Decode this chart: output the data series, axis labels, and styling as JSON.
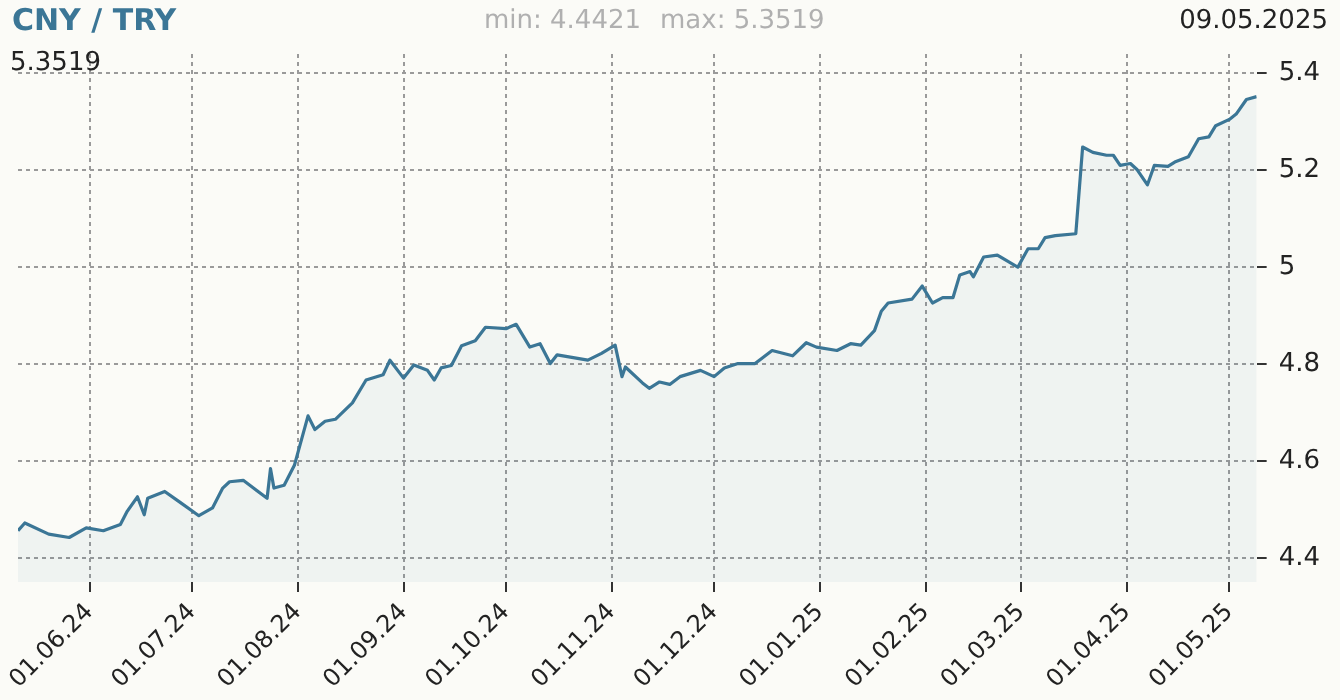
{
  "chart_data": {
    "type": "area",
    "title": "CNY / TRY",
    "annotations": [
      "min: 4.4421",
      "max: 5.3519",
      "09.05.2025",
      "5.3519"
    ],
    "x": [
      "2024-05-11",
      "2024-05-13",
      "2024-05-20",
      "2024-05-26",
      "2024-05-31",
      "2024-06-05",
      "2024-06-10",
      "2024-06-12",
      "2024-06-15",
      "2024-06-17",
      "2024-06-18",
      "2024-06-23",
      "2024-06-27",
      "2024-07-03",
      "2024-07-07",
      "2024-07-10",
      "2024-07-12",
      "2024-07-16",
      "2024-07-19",
      "2024-07-23",
      "2024-07-24",
      "2024-07-25",
      "2024-07-28",
      "2024-07-31",
      "2024-08-04",
      "2024-08-06",
      "2024-08-09",
      "2024-08-12",
      "2024-08-17",
      "2024-08-21",
      "2024-08-26",
      "2024-08-28",
      "2024-09-01",
      "2024-09-04",
      "2024-09-08",
      "2024-09-10",
      "2024-09-12",
      "2024-09-15",
      "2024-09-18",
      "2024-09-22",
      "2024-09-25",
      "2024-10-01",
      "2024-10-04",
      "2024-10-08",
      "2024-10-11",
      "2024-10-14",
      "2024-10-16",
      "2024-10-25",
      "2024-10-29",
      "2024-11-02",
      "2024-11-04",
      "2024-11-05",
      "2024-11-10",
      "2024-11-12",
      "2024-11-15",
      "2024-11-18",
      "2024-11-21",
      "2024-11-27",
      "2024-12-01",
      "2024-12-04",
      "2024-12-08",
      "2024-12-13",
      "2024-12-18",
      "2024-12-24",
      "2024-12-28",
      "2024-12-31",
      "2025-01-06",
      "2025-01-10",
      "2025-01-13",
      "2025-01-17",
      "2025-01-19",
      "2025-01-21",
      "2025-01-28",
      "2025-01-31",
      "2025-02-03",
      "2025-02-06",
      "2025-02-09",
      "2025-02-11",
      "2025-02-14",
      "2025-02-15",
      "2025-02-18",
      "2025-02-22",
      "2025-02-28",
      "2025-03-03",
      "2025-03-06",
      "2025-03-08",
      "2025-03-11",
      "2025-03-17",
      "2025-03-19",
      "2025-03-22",
      "2025-03-26",
      "2025-03-28",
      "2025-03-30",
      "2025-04-02",
      "2025-04-04",
      "2025-04-07",
      "2025-04-09",
      "2025-04-13",
      "2025-04-15",
      "2025-04-19",
      "2025-04-22",
      "2025-04-25",
      "2025-04-27",
      "2025-05-01",
      "2025-05-03",
      "2025-05-06",
      "2025-05-09"
    ],
    "series": [
      {
        "color": "#3b7696",
        "values": [
          4.456,
          4.472,
          4.449,
          4.442,
          4.462,
          4.456,
          4.469,
          4.496,
          4.526,
          4.489,
          4.523,
          4.537,
          4.517,
          4.487,
          4.503,
          4.544,
          4.557,
          4.56,
          4.544,
          4.523,
          4.584,
          4.544,
          4.55,
          4.591,
          4.693,
          4.665,
          4.682,
          4.686,
          4.72,
          4.767,
          4.778,
          4.808,
          4.771,
          4.798,
          4.787,
          4.767,
          4.792,
          4.797,
          4.838,
          4.848,
          4.876,
          4.873,
          4.882,
          4.835,
          4.842,
          4.801,
          4.819,
          4.808,
          4.822,
          4.839,
          4.774,
          4.794,
          4.761,
          4.75,
          4.763,
          4.758,
          4.774,
          4.787,
          4.774,
          4.792,
          4.801,
          4.801,
          4.828,
          4.817,
          4.844,
          4.835,
          4.828,
          4.842,
          4.839,
          4.869,
          4.909,
          4.926,
          4.934,
          4.961,
          4.926,
          4.937,
          4.937,
          4.984,
          4.991,
          4.98,
          5.021,
          5.025,
          5.0,
          5.038,
          5.038,
          5.061,
          5.065,
          5.069,
          5.248,
          5.237,
          5.231,
          5.231,
          5.21,
          5.214,
          5.201,
          5.17,
          5.21,
          5.208,
          5.217,
          5.228,
          5.265,
          5.269,
          5.292,
          5.305,
          5.316,
          5.346,
          5.352
        ]
      }
    ],
    "xlim": [
      "2024-05-11",
      "2025-05-09"
    ],
    "xticks": [
      {
        "value": "2024-06-01",
        "label": "01.06.24"
      },
      {
        "value": "2024-07-01",
        "label": "01.07.24"
      },
      {
        "value": "2024-08-01",
        "label": "01.08.24"
      },
      {
        "value": "2024-09-01",
        "label": "01.09.24"
      },
      {
        "value": "2024-10-01",
        "label": "01.10.24"
      },
      {
        "value": "2024-11-01",
        "label": "01.11.24"
      },
      {
        "value": "2024-12-01",
        "label": "01.12.24"
      },
      {
        "value": "2025-01-01",
        "label": "01.01.25"
      },
      {
        "value": "2025-02-01",
        "label": "01.02.25"
      },
      {
        "value": "2025-03-01",
        "label": "01.03.25"
      },
      {
        "value": "2025-04-01",
        "label": "01.04.25"
      },
      {
        "value": "2025-05-01",
        "label": "01.05.25"
      }
    ],
    "ylim": [
      4.35,
      5.44
    ],
    "yticks": [
      4.4,
      4.6,
      4.8,
      5,
      5.2,
      5.4
    ],
    "grid": true,
    "legend": false,
    "marker": "none",
    "line_style": "solid"
  }
}
